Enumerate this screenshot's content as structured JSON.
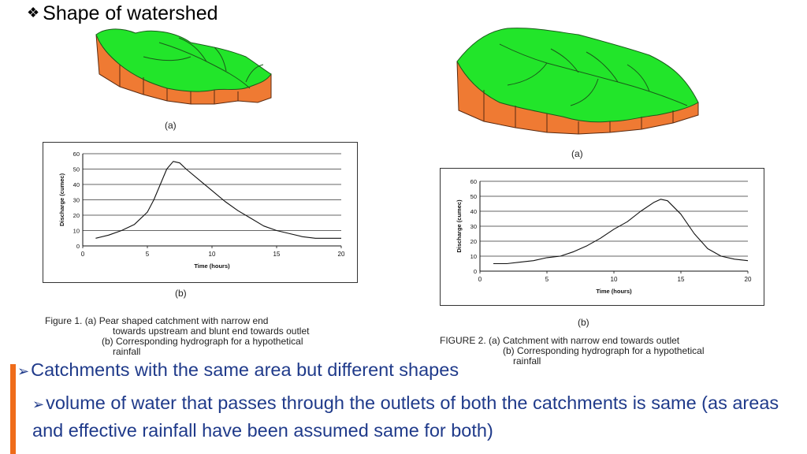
{
  "slide": {
    "title_glyph": "❖",
    "title": "Shape of watershed"
  },
  "figure1": {
    "sub_a": "(a)",
    "sub_b": "(b)",
    "caption_line1": "Figure 1.  (a) Pear shaped catchment with narrow end",
    "caption_line2": "towards upstream and blunt end towards outlet",
    "caption_line3": "(b) Corresponding hydrograph for a hypothetical",
    "caption_line4": "rainfall"
  },
  "figure2": {
    "sub_a": "(a)",
    "sub_b": "(b)",
    "caption_line1": "FIGURE 2.  (a) Catchment with narrow end towards outlet",
    "caption_line2": "(b) Corresponding hydrograph for a hypothetical",
    "caption_line3": "rainfall"
  },
  "bullets": {
    "main_arrow": "➢",
    "main": "Catchments with the same area but different shapes",
    "sub_arrow": "➢",
    "sub": "volume of water that passes through the outlets of both the catchments is same (as areas and effective rainfall have been assumed same for both)"
  },
  "colors": {
    "land_top": "#22e52a",
    "land_side": "#ef7a33",
    "bullet_text": "#1f3a8a",
    "accent_bar": "#ef6c1a"
  },
  "chart_data": [
    {
      "type": "line",
      "xlabel": "Time (hours)",
      "ylabel": "Discharge (cumec)",
      "xlim": [
        0,
        20
      ],
      "ylim": [
        0,
        60
      ],
      "x_ticks": [
        0,
        5,
        10,
        15,
        20
      ],
      "y_ticks": [
        0,
        10,
        20,
        30,
        40,
        50,
        60
      ],
      "grid": true,
      "series": [
        {
          "x": [
            1,
            2,
            3,
            4,
            5,
            5.5,
            6,
            6.5,
            7,
            7.5,
            8,
            9,
            10,
            11,
            12,
            13,
            14,
            15,
            16,
            17,
            18,
            19,
            20
          ],
          "y": [
            5,
            7,
            10,
            14,
            22,
            30,
            40,
            50,
            55,
            54,
            50,
            43,
            36,
            29,
            23,
            18,
            13,
            10,
            8,
            6,
            5,
            5,
            5
          ]
        }
      ]
    },
    {
      "type": "line",
      "xlabel": "Time (hours)",
      "ylabel": "Discharge (cumec)",
      "xlim": [
        0,
        20
      ],
      "ylim": [
        0,
        60
      ],
      "x_ticks": [
        0,
        5,
        10,
        15,
        20
      ],
      "y_ticks": [
        0,
        10,
        20,
        30,
        40,
        50,
        60
      ],
      "grid": true,
      "series": [
        {
          "x": [
            1,
            2,
            3,
            4,
            5,
            6,
            7,
            8,
            9,
            10,
            11,
            12,
            13,
            13.5,
            14,
            15,
            16,
            17,
            18,
            19,
            20
          ],
          "y": [
            5,
            5,
            6,
            7,
            9,
            10,
            13,
            17,
            22,
            28,
            33,
            40,
            46,
            48,
            47,
            38,
            25,
            15,
            10,
            8,
            7
          ]
        }
      ]
    }
  ]
}
